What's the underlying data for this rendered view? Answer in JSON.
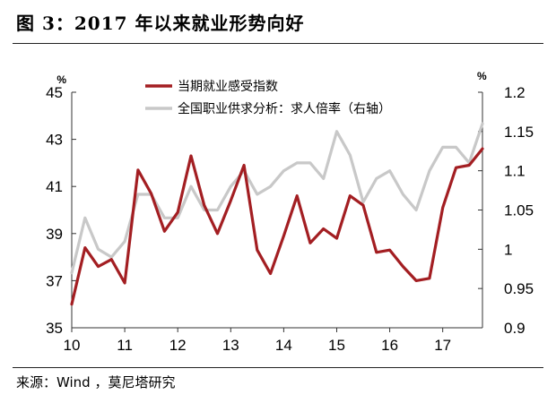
{
  "title": "图 3：2017 年以来就业形势向好",
  "source": "来源：Wind ，莫尼塔研究",
  "chart_data": {
    "type": "line",
    "title": "",
    "x_ticks": [
      {
        "label": "10",
        "value": 2010
      },
      {
        "label": "11",
        "value": 2011
      },
      {
        "label": "12",
        "value": 2012
      },
      {
        "label": "13",
        "value": 2013
      },
      {
        "label": "14",
        "value": 2014
      },
      {
        "label": "15",
        "value": 2015
      },
      {
        "label": "16",
        "value": 2016
      },
      {
        "label": "17",
        "value": 2017
      }
    ],
    "xlim": [
      2010,
      2017.75
    ],
    "left_axis": {
      "unit": "%",
      "ylim": [
        35,
        45
      ],
      "ticks": [
        35,
        37,
        39,
        41,
        43,
        45
      ]
    },
    "right_axis": {
      "unit": "%",
      "ylim": [
        0.9,
        1.2
      ],
      "ticks": [
        "0.9",
        "0.95",
        "1",
        "1.05",
        "1.1",
        "1.15",
        "1.2"
      ]
    },
    "legend_position": "top-center",
    "grid": false,
    "colors": {
      "employment": "#a31e22",
      "ratio": "#c8c8c8"
    },
    "series": [
      {
        "name": "当期就业感受指数",
        "axis": "left",
        "x": [
          2010,
          2010.25,
          2010.5,
          2010.75,
          2011,
          2011.25,
          2011.5,
          2011.75,
          2012,
          2012.25,
          2012.5,
          2012.75,
          2013,
          2013.25,
          2013.5,
          2013.75,
          2014,
          2014.25,
          2014.5,
          2014.75,
          2015,
          2015.25,
          2015.5,
          2015.75,
          2016,
          2016.25,
          2016.5,
          2016.75,
          2017,
          2017.25,
          2017.5,
          2017.75
        ],
        "values": [
          36.0,
          38.4,
          37.6,
          37.9,
          36.9,
          41.7,
          40.7,
          39.1,
          39.9,
          42.3,
          40.2,
          39.0,
          40.4,
          41.9,
          38.3,
          37.3,
          38.9,
          40.6,
          38.6,
          39.2,
          38.8,
          40.6,
          40.2,
          38.2,
          38.3,
          37.6,
          37.0,
          37.1,
          40.1,
          41.8,
          41.9,
          42.6
        ]
      },
      {
        "name": "全国职业供求分析：求人倍率（右轴）",
        "axis": "right",
        "x": [
          2010,
          2010.25,
          2010.5,
          2010.75,
          2011,
          2011.25,
          2011.5,
          2011.75,
          2012,
          2012.25,
          2012.5,
          2012.75,
          2013,
          2013.25,
          2013.5,
          2013.75,
          2014,
          2014.25,
          2014.5,
          2014.75,
          2015,
          2015.25,
          2015.5,
          2015.75,
          2016,
          2016.25,
          2016.5,
          2016.75,
          2017,
          2017.25,
          2017.5,
          2017.75
        ],
        "values": [
          0.97,
          1.04,
          1.0,
          0.99,
          1.01,
          1.07,
          1.07,
          1.04,
          1.04,
          1.08,
          1.05,
          1.05,
          1.08,
          1.1,
          1.07,
          1.08,
          1.1,
          1.11,
          1.11,
          1.09,
          1.15,
          1.12,
          1.06,
          1.09,
          1.1,
          1.07,
          1.05,
          1.1,
          1.13,
          1.13,
          1.11,
          1.16
        ]
      }
    ]
  }
}
